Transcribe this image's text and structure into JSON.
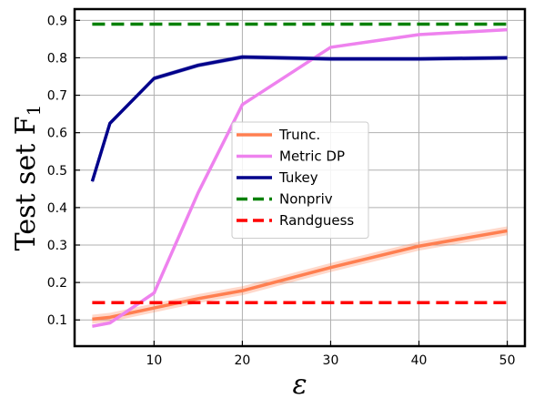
{
  "chart_data": {
    "type": "line",
    "title": "",
    "xlabel": "ε",
    "ylabel": "Test set F",
    "ylabel_subscript": "1",
    "xlim": [
      1,
      52
    ],
    "ylim": [
      0.03,
      0.93
    ],
    "xticks": [
      10,
      20,
      30,
      40,
      50
    ],
    "yticks": [
      0.1,
      0.2,
      0.3,
      0.4,
      0.5,
      0.6,
      0.7,
      0.8,
      0.9
    ],
    "grid": true,
    "legend_position": "center-right",
    "series": [
      {
        "name": "Trunc.",
        "color": "#ff7f50",
        "dashed": false,
        "band": 0.012,
        "x": [
          3,
          5,
          10,
          15,
          20,
          30,
          40,
          50
        ],
        "y": [
          0.102,
          0.107,
          0.132,
          0.157,
          0.178,
          0.24,
          0.297,
          0.338
        ]
      },
      {
        "name": "Metric DP",
        "color": "#ee82ee",
        "dashed": false,
        "band": 0.004,
        "x": [
          3,
          5,
          10,
          15,
          20,
          30,
          40,
          50
        ],
        "y": [
          0.083,
          0.092,
          0.172,
          0.44,
          0.675,
          0.828,
          0.862,
          0.875
        ]
      },
      {
        "name": "Tukey",
        "color": "#00008b",
        "dashed": false,
        "band": 0.006,
        "x": [
          3,
          5,
          10,
          15,
          20,
          30,
          40,
          50
        ],
        "y": [
          0.47,
          0.625,
          0.745,
          0.78,
          0.802,
          0.797,
          0.797,
          0.8
        ]
      },
      {
        "name": "Nonpriv",
        "color": "#008000",
        "dashed": true,
        "band": 0,
        "x": [
          3,
          50
        ],
        "y": [
          0.89,
          0.89
        ]
      },
      {
        "name": "Randguess",
        "color": "#ff0000",
        "dashed": true,
        "band": 0,
        "x": [
          3,
          50
        ],
        "y": [
          0.146,
          0.146
        ]
      }
    ]
  }
}
